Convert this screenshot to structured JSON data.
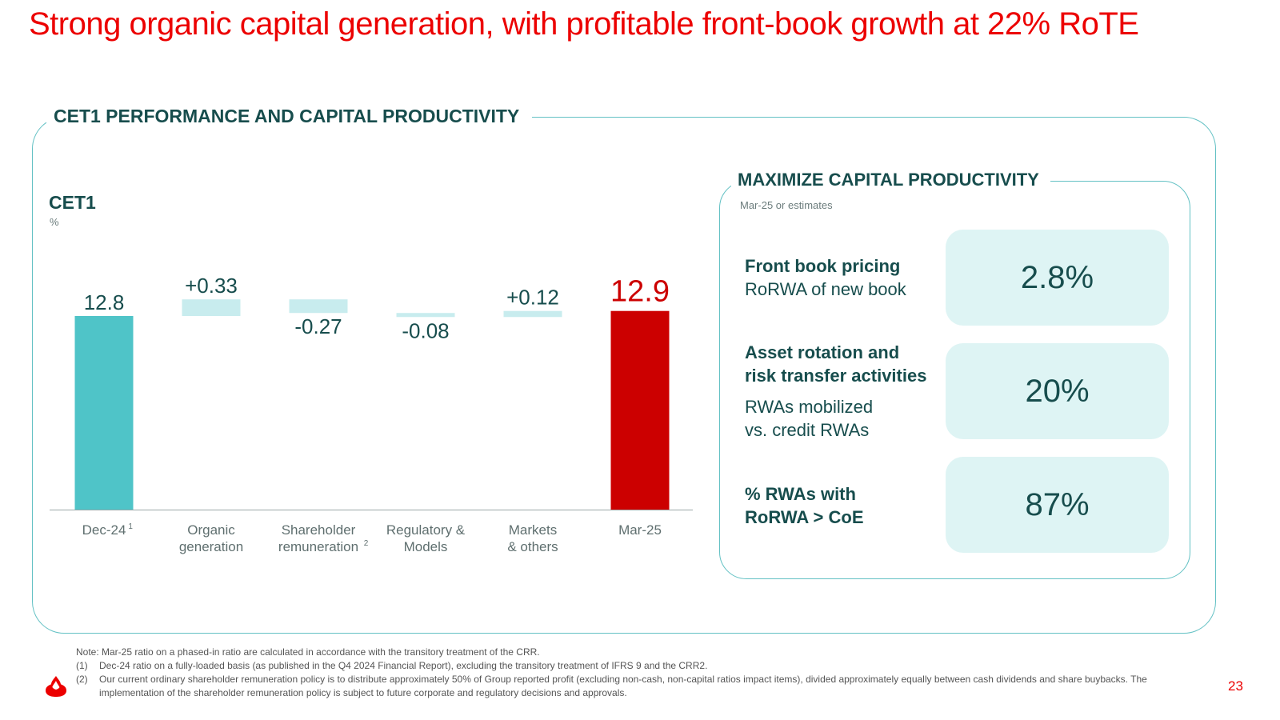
{
  "title": "Strong organic capital generation, with profitable front-book growth at 22% RoTE",
  "section_title": "CET1 PERFORMANCE AND CAPITAL PRODUCTIVITY",
  "chart_data": {
    "type": "bar",
    "subtype": "waterfall",
    "title": "CET1",
    "unit": "%",
    "categories": [
      {
        "label": "Dec-24",
        "sup": "1",
        "lines": [
          "Dec-24"
        ]
      },
      {
        "label": "Organic generation",
        "sup": "",
        "lines": [
          "Organic",
          "generation"
        ]
      },
      {
        "label": "Shareholder remuneration",
        "sup": "2",
        "lines": [
          "Shareholder",
          "remuneration"
        ]
      },
      {
        "label": "Regulatory & Models",
        "sup": "",
        "lines": [
          "Regulatory &",
          "Models"
        ]
      },
      {
        "label": "Markets & others",
        "sup": "",
        "lines": [
          "Markets",
          "& others"
        ]
      },
      {
        "label": "Mar-25",
        "sup": "",
        "lines": [
          "Mar-25"
        ]
      }
    ],
    "values": [
      12.8,
      0.33,
      -0.27,
      -0.08,
      0.12,
      12.9
    ],
    "bar_kinds": [
      "total",
      "delta",
      "delta",
      "delta",
      "delta",
      "total"
    ],
    "data_labels": [
      "12.8",
      "+0.33",
      "-0.27",
      "-0.08",
      "+0.12",
      "12.9"
    ],
    "colors": {
      "start": "#4fc4c8",
      "delta": "#c8ecee",
      "end": "#cc0000",
      "end_label": "#cc0000",
      "axis": "#9aa8a8"
    }
  },
  "productivity": {
    "title": "MAXIMIZE CAPITAL PRODUCTIVITY",
    "subtitle": "Mar-25 or estimates",
    "metrics": [
      {
        "bold1": "Front book pricing",
        "bold2": "",
        "normal1": "RoRWA of new book",
        "normal2": "",
        "value": "2.8%"
      },
      {
        "bold1": "Asset rotation and",
        "bold2": "risk transfer activities",
        "normal1": "RWAs mobilized",
        "normal2": "vs. credit RWAs",
        "value": "20%"
      },
      {
        "bold1": "% RWAs with",
        "bold2": "RoRWA > CoE",
        "normal1": "",
        "normal2": "",
        "value": "87%"
      }
    ]
  },
  "notes": {
    "note": "Note: Mar-25 ratio on a phased-in ratio are calculated in accordance with the transitory treatment of the CRR.",
    "fn1_num": "(1)",
    "fn1": "Dec-24 ratio on a fully-loaded basis (as published in the Q4 2024 Financial Report), excluding the transitory treatment of IFRS 9 and the CRR2.",
    "fn2_num": "(2)",
    "fn2": "Our current ordinary shareholder remuneration policy is to distribute approximately 50% of Group reported profit (excluding non-cash, non-capital ratios impact items), divided approximately equally between cash dividends and share buybacks. The implementation of the shareholder remuneration policy is subject to future corporate and regulatory decisions and approvals."
  },
  "page_number": "23",
  "brand_color": "#ec0000"
}
